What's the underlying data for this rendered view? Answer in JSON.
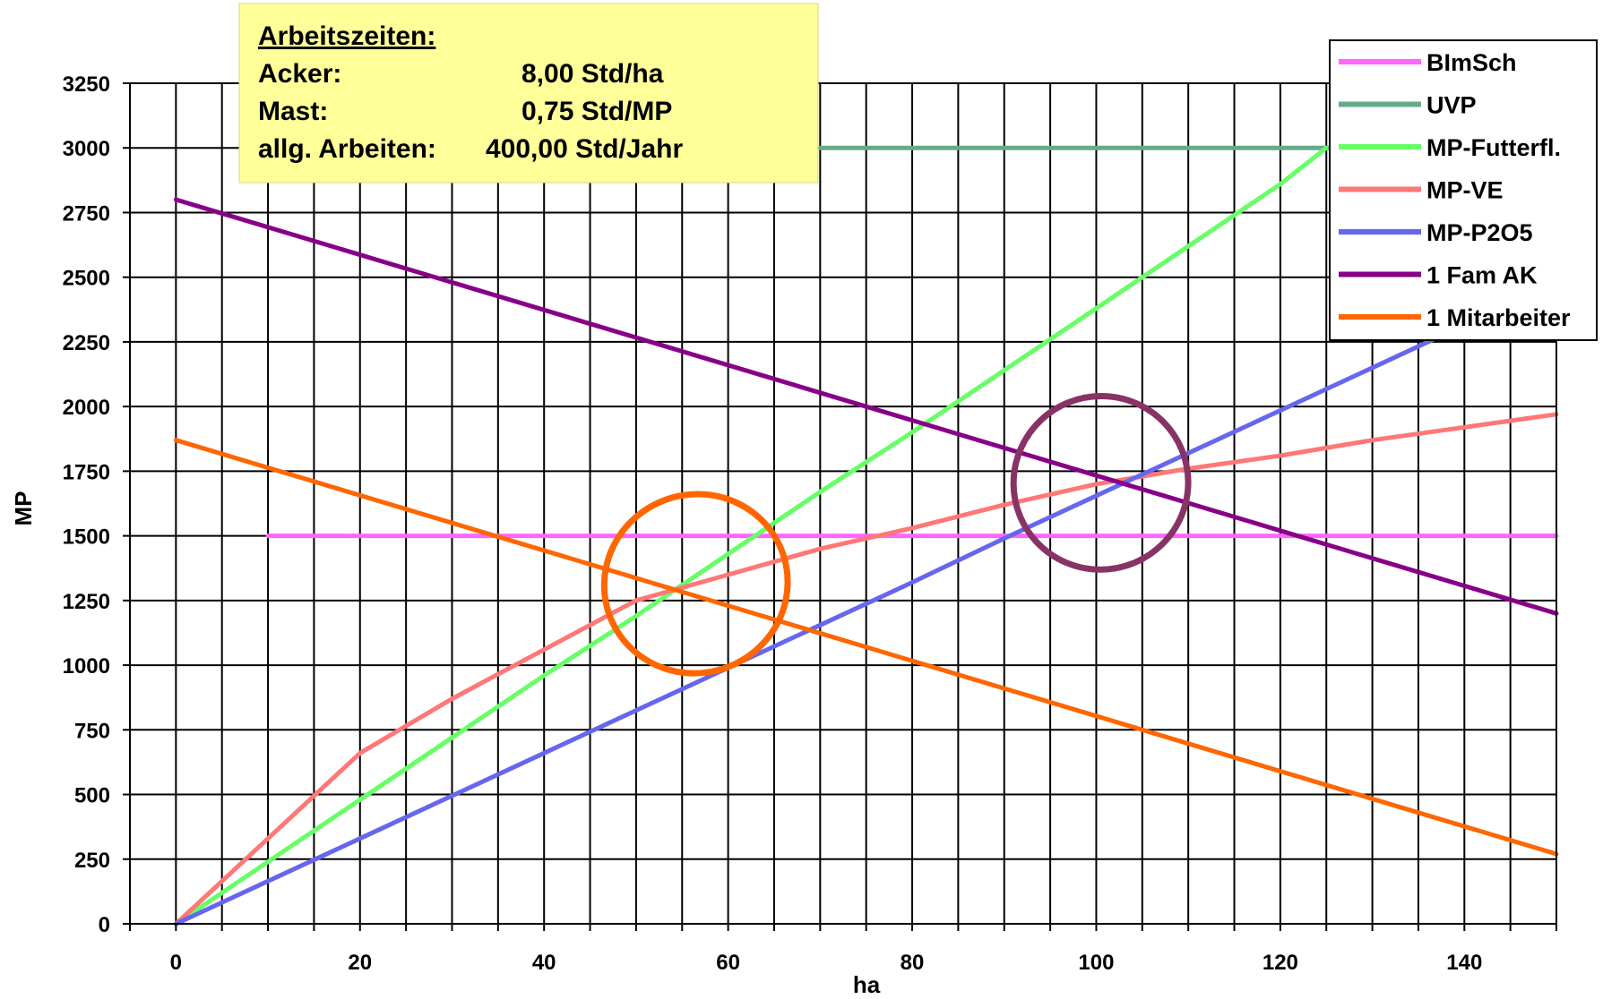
{
  "chart_data": {
    "type": "line",
    "title": "",
    "xlabel": "ha",
    "ylabel": "MP",
    "xlim": [
      -5,
      150
    ],
    "ylim": [
      0,
      3250
    ],
    "x_ticks": [
      0,
      20,
      40,
      60,
      80,
      100,
      120,
      140
    ],
    "y_ticks": [
      0,
      250,
      500,
      750,
      1000,
      1250,
      1500,
      1750,
      2000,
      2250,
      2500,
      2750,
      3000,
      3250
    ],
    "grid": true,
    "legend_position": "top-right",
    "info_box": {
      "title": "Arbeitszeiten:",
      "rows": [
        {
          "label": "Acker:",
          "value": "8,00 Std/ha"
        },
        {
          "label": "Mast:",
          "value": "0,75 Std/MP"
        },
        {
          "label": "allg. Arbeiten:",
          "value": "400,00 Std/Jahr"
        }
      ]
    },
    "series": [
      {
        "name": "BImSch",
        "color": "#ff66ff",
        "x": [
          10,
          150
        ],
        "y": [
          1500,
          1500
        ]
      },
      {
        "name": "UVP",
        "color": "#66aa88",
        "x": [
          70,
          150
        ],
        "y": [
          3000,
          3000
        ]
      },
      {
        "name": "MP-Futterfl.",
        "color": "#66ff66",
        "x": [
          0,
          10,
          20,
          30,
          40,
          50,
          60,
          70,
          80,
          90,
          100,
          110,
          120,
          125
        ],
        "y": [
          0,
          240,
          480,
          720,
          960,
          1190,
          1430,
          1670,
          1900,
          2140,
          2380,
          2620,
          2860,
          3000
        ]
      },
      {
        "name": "MP-VE",
        "color": "#ff7777",
        "x": [
          0,
          10,
          20,
          30,
          40,
          50,
          60,
          70,
          80,
          90,
          100,
          110,
          120,
          130,
          140,
          150
        ],
        "y": [
          0,
          330,
          660,
          870,
          1060,
          1250,
          1350,
          1450,
          1530,
          1620,
          1700,
          1760,
          1810,
          1870,
          1920,
          1970
        ]
      },
      {
        "name": "MP-P2O5",
        "color": "#6666ee",
        "x": [
          0,
          10,
          20,
          30,
          40,
          50,
          60,
          70,
          80,
          90,
          100,
          110,
          120,
          130,
          140,
          150
        ],
        "y": [
          0,
          165,
          330,
          495,
          660,
          825,
          990,
          1155,
          1320,
          1490,
          1655,
          1820,
          1985,
          2150,
          2315,
          2480
        ]
      },
      {
        "name": "1 Fam AK",
        "color": "#880088",
        "x": [
          0,
          150
        ],
        "y": [
          2800,
          1200
        ]
      },
      {
        "name": "1 Mitarbeiter",
        "color": "#ff6600",
        "x": [
          0,
          150
        ],
        "y": [
          1870,
          270
        ]
      }
    ],
    "annotations": [
      {
        "type": "ellipse",
        "color": "#ff6600",
        "center": [
          56.5,
          1315
        ],
        "rx": 10,
        "ry": 345,
        "angle": -20
      },
      {
        "type": "ellipse",
        "color": "#883366",
        "center": [
          100.5,
          1705
        ],
        "rx": 9.5,
        "ry": 335,
        "angle": -22
      }
    ]
  }
}
